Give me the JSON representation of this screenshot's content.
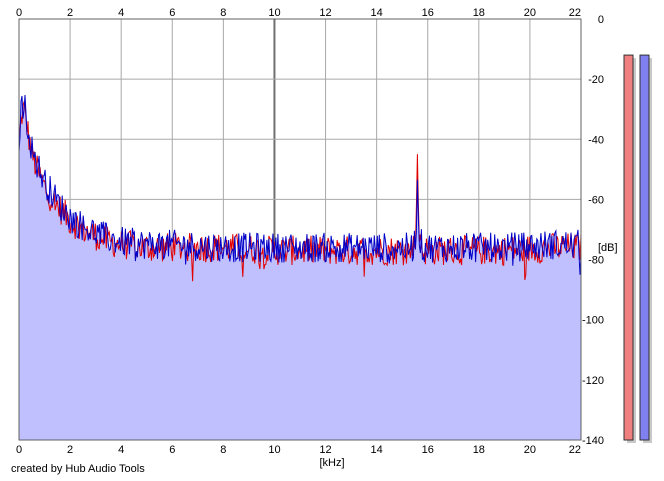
{
  "credit": "created by Hub Audio Tools",
  "chart_data": {
    "type": "area",
    "title": "",
    "xlabel": "[kHz]",
    "ylabel": "[dB]",
    "xlim": [
      0,
      22
    ],
    "ylim": [
      -140,
      0
    ],
    "x_ticks": [
      "0",
      "2",
      "4",
      "6",
      "8",
      "10",
      "12",
      "14",
      "16",
      "18",
      "20",
      "22"
    ],
    "y_ticks": [
      "0",
      "-20",
      "-40",
      "-60",
      "-80",
      "-100",
      "-120",
      "-140"
    ],
    "grid": true,
    "series": [
      {
        "color": "#e00000",
        "x": [
          0,
          0.1,
          0.2,
          0.3,
          0.4,
          0.5,
          0.7,
          1.0,
          1.3,
          1.6,
          2.0,
          2.5,
          3.0,
          3.5,
          4.0,
          5.0,
          6.0,
          8.0,
          10.0,
          12.0,
          14.0,
          15.4,
          15.55,
          15.6,
          15.65,
          15.8,
          17.0,
          19.0,
          21.0,
          22.0
        ],
        "values": [
          -42,
          -32,
          -30,
          -35,
          -40,
          -45,
          -50,
          -56,
          -60,
          -63,
          -67,
          -70,
          -72,
          -74,
          -75,
          -76,
          -76,
          -76,
          -77,
          -77,
          -77,
          -77,
          -70,
          -43,
          -70,
          -77,
          -77,
          -77,
          -76,
          -76
        ]
      },
      {
        "color": "#0000c8",
        "x": [
          0,
          0.1,
          0.2,
          0.3,
          0.4,
          0.5,
          0.7,
          1.0,
          1.3,
          1.6,
          2.0,
          2.5,
          3.0,
          3.5,
          4.0,
          5.0,
          6.0,
          8.0,
          10.0,
          12.0,
          14.0,
          15.4,
          15.55,
          15.6,
          15.65,
          15.8,
          17.0,
          19.0,
          21.0,
          22.0
        ],
        "values": [
          -40,
          -29,
          -28,
          -33,
          -38,
          -43,
          -48,
          -54,
          -58,
          -62,
          -66,
          -69,
          -71,
          -73,
          -74,
          -75,
          -75,
          -76,
          -76,
          -76,
          -76,
          -76,
          -72,
          -52,
          -72,
          -76,
          -76,
          -76,
          -75,
          -75
        ]
      }
    ],
    "level_meters": [
      {
        "color": "#f08080",
        "level_db": -12
      },
      {
        "color": "#8080f0",
        "level_db": -12
      }
    ]
  }
}
